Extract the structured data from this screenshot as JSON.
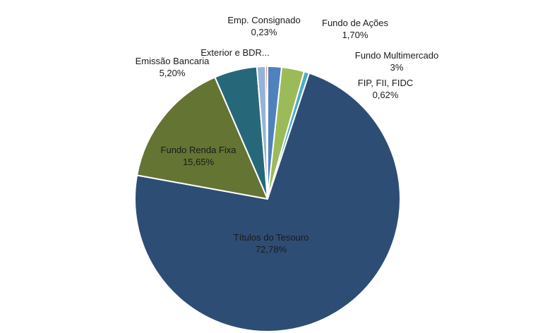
{
  "chart_data": {
    "type": "pie",
    "slices": [
      {
        "label": "Fundo de Ações",
        "value_text": "1,70%",
        "value": 1.7,
        "color": "#4f81bd"
      },
      {
        "label": "Fundo Multimercado",
        "value_text": "3%",
        "value": 2.76,
        "color": "#9bbb59"
      },
      {
        "label": "FIP, FII, FIDC",
        "value_text": "0,62%",
        "value": 0.62,
        "color": "#4bacc6"
      },
      {
        "label": "Títulos do Tesouro",
        "value_text": "72,78%",
        "value": 72.78,
        "color": "#2e4d75"
      },
      {
        "label": "Fundo Renda Fixa",
        "value_text": "15,65%",
        "value": 15.65,
        "color": "#647433"
      },
      {
        "label": "Emissão Bancaria",
        "value_text": "5,20%",
        "value": 5.2,
        "color": "#27677a"
      },
      {
        "label": "Exterior e BDR...",
        "value_text": "",
        "value": 1.06,
        "color": "#95b3d7"
      },
      {
        "label": "Emp. Consignado",
        "value_text": "0,23%",
        "value": 0.23,
        "color": "#c0504d"
      }
    ]
  }
}
